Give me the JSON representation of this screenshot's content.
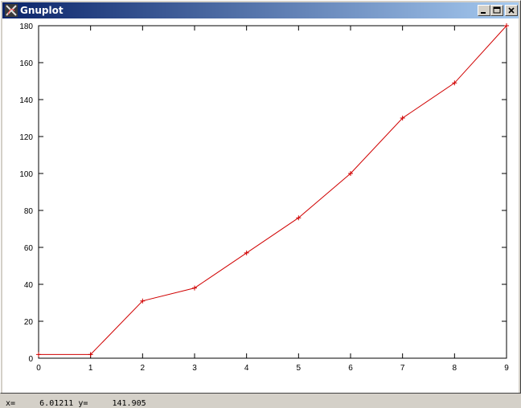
{
  "window": {
    "title": "Gnuplot",
    "app_icon": "gnuplot-icon"
  },
  "controls": {
    "minimize_icon": "minimize-icon",
    "maximize_icon": "maximize-icon",
    "close_icon": "close-icon"
  },
  "status": {
    "x_label": "x=",
    "x_value": "6.01211",
    "y_label": "y=",
    "y_value": "141.905"
  },
  "colors": {
    "line": "#d00000",
    "axis": "#000000"
  },
  "chart_data": {
    "type": "line",
    "title": "",
    "xlabel": "",
    "ylabel": "",
    "xlim": [
      0,
      9
    ],
    "ylim": [
      0,
      180
    ],
    "grid": false,
    "x_ticks": [
      0,
      1,
      2,
      3,
      4,
      5,
      6,
      7,
      8,
      9
    ],
    "y_ticks": [
      0,
      20,
      40,
      60,
      80,
      100,
      120,
      140,
      160,
      180
    ],
    "series": [
      {
        "x": [
          0,
          1,
          2,
          3,
          4,
          5,
          6,
          7,
          8,
          9
        ],
        "y": [
          2,
          2,
          31,
          38,
          57,
          76,
          100,
          130,
          149,
          180
        ]
      }
    ]
  }
}
